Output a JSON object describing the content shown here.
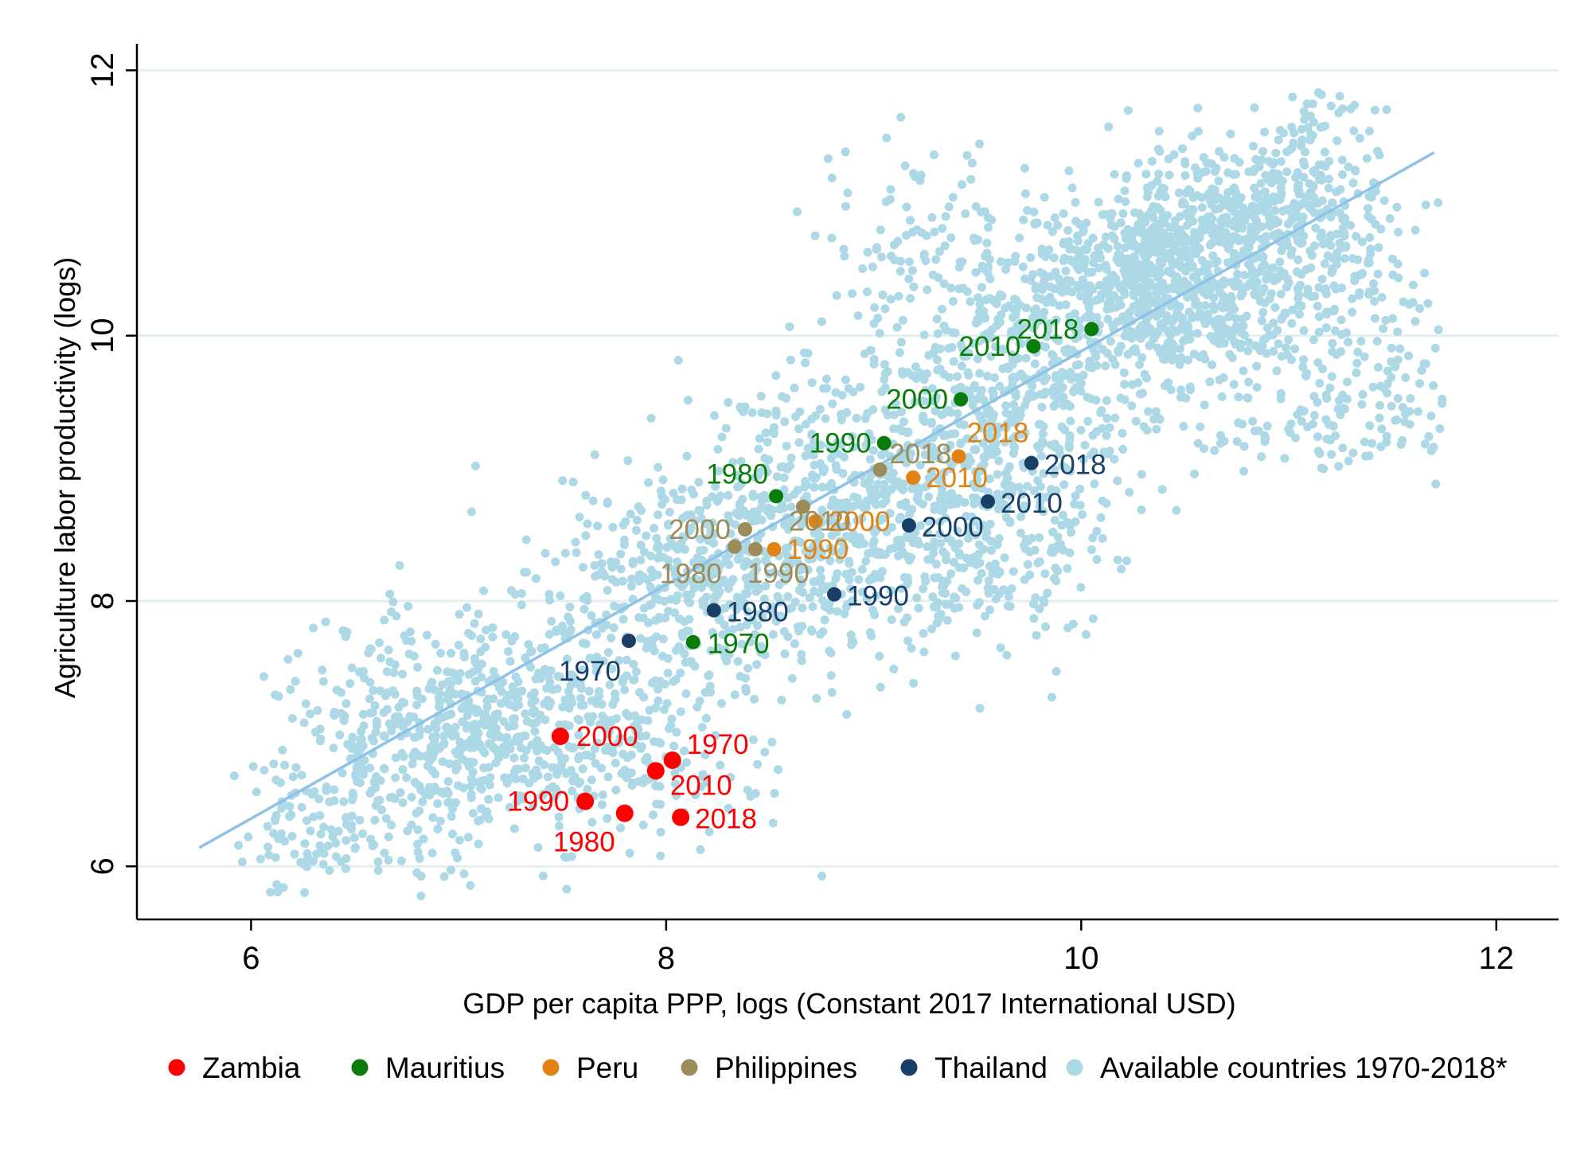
{
  "chart_data": {
    "type": "scatter",
    "xlabel": "GDP per capita PPP, logs (Constant 2017 International USD)",
    "ylabel": "Agriculture labor productivity (logs)",
    "xlim": [
      5.45,
      12.3
    ],
    "ylim": [
      5.6,
      12.2
    ],
    "x_ticks": [
      6,
      8,
      10,
      12
    ],
    "y_ticks": [
      6,
      8,
      10,
      12
    ],
    "grid": true,
    "legend_position": "bottom",
    "fit_line": {
      "x": [
        5.75,
        11.7
      ],
      "y": [
        6.14,
        11.38
      ],
      "color": "#8ec2e6"
    },
    "background_series": {
      "name": "Available countries 1970-2018*",
      "color": "#add8e6",
      "clusters": [
        {
          "x": 7.2,
          "y": 7.1,
          "sx": 0.45,
          "sy": 0.38,
          "n": 450
        },
        {
          "x": 6.7,
          "y": 6.8,
          "sx": 0.3,
          "sy": 0.5,
          "n": 250
        },
        {
          "x": 8.2,
          "y": 8.1,
          "sx": 0.4,
          "sy": 0.4,
          "n": 450
        },
        {
          "x": 8.9,
          "y": 8.8,
          "sx": 0.45,
          "sy": 0.45,
          "n": 550
        },
        {
          "x": 9.7,
          "y": 9.6,
          "sx": 0.4,
          "sy": 0.45,
          "n": 500
        },
        {
          "x": 10.4,
          "y": 10.4,
          "sx": 0.35,
          "sy": 0.35,
          "n": 750
        },
        {
          "x": 10.85,
          "y": 10.9,
          "sx": 0.3,
          "sy": 0.3,
          "n": 400
        },
        {
          "x": 7.7,
          "y": 6.9,
          "sx": 0.35,
          "sy": 0.4,
          "n": 150
        },
        {
          "x": 9.5,
          "y": 8.3,
          "sx": 0.3,
          "sy": 0.4,
          "n": 200
        },
        {
          "x": 11.2,
          "y": 10.2,
          "sx": 0.25,
          "sy": 0.6,
          "n": 150
        },
        {
          "x": 9.3,
          "y": 10.7,
          "sx": 0.3,
          "sy": 0.4,
          "n": 100
        },
        {
          "x": 11.0,
          "y": 9.3,
          "sx": 0.3,
          "sy": 0.2,
          "n": 60
        },
        {
          "x": 11.6,
          "y": 9.6,
          "sx": 0.1,
          "sy": 0.3,
          "n": 40
        },
        {
          "x": 11.15,
          "y": 11.6,
          "sx": 0.15,
          "sy": 0.15,
          "n": 40
        },
        {
          "x": 6.2,
          "y": 6.3,
          "sx": 0.2,
          "sy": 0.3,
          "n": 60
        }
      ]
    },
    "series": [
      {
        "name": "Zambia",
        "color": "#ff0000",
        "points": [
          {
            "year": "1970",
            "x": 8.03,
            "y": 6.8
          },
          {
            "year": "1980",
            "x": 7.8,
            "y": 6.4
          },
          {
            "year": "1990",
            "x": 7.61,
            "y": 6.49
          },
          {
            "year": "2000",
            "x": 7.49,
            "y": 6.98
          },
          {
            "year": "2010",
            "x": 7.95,
            "y": 6.72
          },
          {
            "year": "2018",
            "x": 8.07,
            "y": 6.37
          }
        ]
      },
      {
        "name": "Mauritius",
        "color": "#0a7c0a",
        "points": [
          {
            "year": "1970",
            "x": 8.13,
            "y": 7.69
          },
          {
            "year": "1980",
            "x": 8.53,
            "y": 8.79
          },
          {
            "year": "1990",
            "x": 9.05,
            "y": 9.19
          },
          {
            "year": "2000",
            "x": 9.42,
            "y": 9.52
          },
          {
            "year": "2010",
            "x": 9.77,
            "y": 9.92
          },
          {
            "year": "2018",
            "x": 10.05,
            "y": 10.05
          }
        ]
      },
      {
        "name": "Peru",
        "color": "#e08214",
        "points": [
          {
            "year": "1990",
            "x": 8.52,
            "y": 8.39
          },
          {
            "year": "2000",
            "x": 8.72,
            "y": 8.6
          },
          {
            "year": "2010",
            "x": 9.19,
            "y": 8.93
          },
          {
            "year": "2018",
            "x": 9.41,
            "y": 9.09
          }
        ]
      },
      {
        "name": "Philippines",
        "color": "#9c8c5a",
        "points": [
          {
            "year": "1980",
            "x": 8.33,
            "y": 8.41
          },
          {
            "year": "1990",
            "x": 8.43,
            "y": 8.39
          },
          {
            "year": "2000",
            "x": 8.38,
            "y": 8.54
          },
          {
            "year": "2010",
            "x": 8.66,
            "y": 8.71
          },
          {
            "year": "2018",
            "x": 9.03,
            "y": 8.99
          }
        ]
      },
      {
        "name": "Thailand",
        "color": "#1a3f66",
        "points": [
          {
            "year": "1970",
            "x": 7.82,
            "y": 7.7
          },
          {
            "year": "1980",
            "x": 8.23,
            "y": 7.93
          },
          {
            "year": "1990",
            "x": 8.81,
            "y": 8.05
          },
          {
            "year": "2000",
            "x": 9.17,
            "y": 8.57
          },
          {
            "year": "2010",
            "x": 9.55,
            "y": 8.75
          },
          {
            "year": "2018",
            "x": 9.76,
            "y": 9.04
          }
        ]
      }
    ]
  }
}
